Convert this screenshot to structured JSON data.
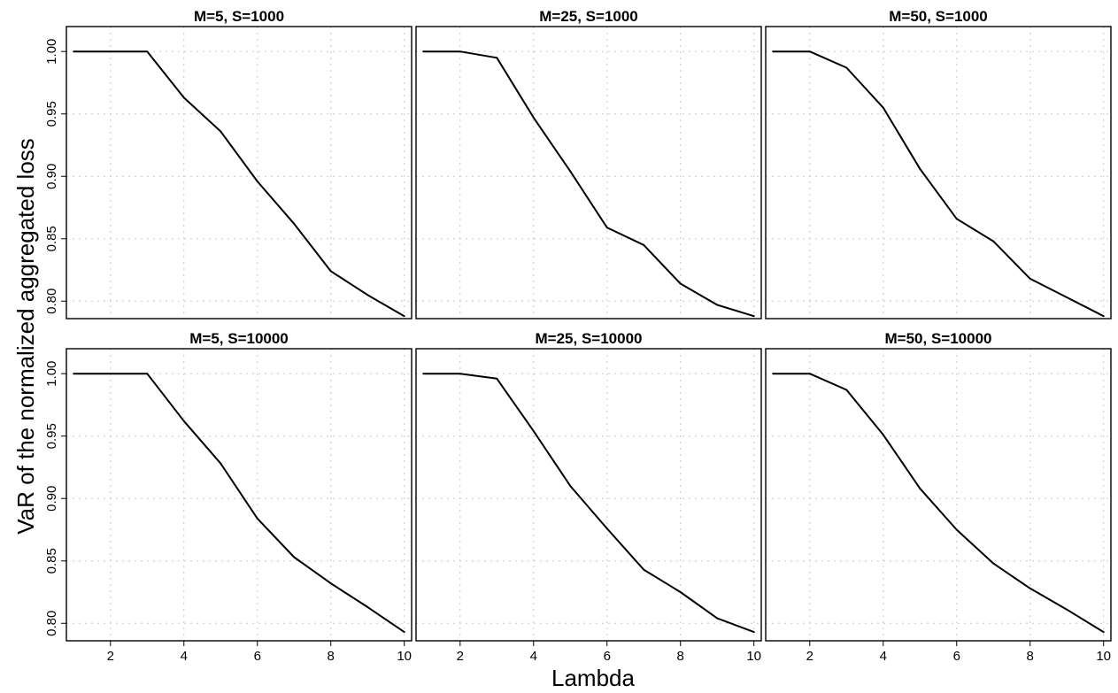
{
  "figure": {
    "xlabel": "Lambda",
    "ylabel": "VaR of the normalized aggregated loss"
  },
  "chart_data": [
    {
      "type": "line",
      "title": "M=5, S=1000",
      "xlim": [
        0.8,
        10.2
      ],
      "ylim": [
        0.786,
        1.02
      ],
      "xticks": [
        2,
        4,
        6,
        8,
        10
      ],
      "yticks": [
        0.8,
        0.85,
        0.9,
        0.95,
        1.0
      ],
      "grid": true,
      "x": [
        1,
        2,
        3,
        4,
        5,
        6,
        7,
        8,
        9,
        10
      ],
      "series": [
        {
          "values": [
            1.0,
            1.0,
            1.0,
            0.963,
            0.936,
            0.896,
            0.862,
            0.824,
            0.805,
            0.788
          ]
        }
      ]
    },
    {
      "type": "line",
      "title": "M=25, S=1000",
      "xlim": [
        0.8,
        10.2
      ],
      "ylim": [
        0.786,
        1.02
      ],
      "xticks": [
        2,
        4,
        6,
        8,
        10
      ],
      "yticks": [
        0.8,
        0.85,
        0.9,
        0.95,
        1.0
      ],
      "grid": true,
      "x": [
        1,
        2,
        3,
        4,
        5,
        6,
        7,
        8,
        9,
        10
      ],
      "series": [
        {
          "values": [
            1.0,
            1.0,
            0.995,
            0.947,
            0.904,
            0.859,
            0.845,
            0.814,
            0.797,
            0.788
          ]
        }
      ]
    },
    {
      "type": "line",
      "title": "M=50, S=1000",
      "xlim": [
        0.8,
        10.2
      ],
      "ylim": [
        0.786,
        1.02
      ],
      "xticks": [
        2,
        4,
        6,
        8,
        10
      ],
      "yticks": [
        0.8,
        0.85,
        0.9,
        0.95,
        1.0
      ],
      "grid": true,
      "x": [
        1,
        2,
        3,
        4,
        5,
        6,
        7,
        8,
        9,
        10
      ],
      "series": [
        {
          "values": [
            1.0,
            1.0,
            0.987,
            0.955,
            0.906,
            0.866,
            0.848,
            0.818,
            0.803,
            0.788
          ]
        }
      ]
    },
    {
      "type": "line",
      "title": "M=5, S=10000",
      "xlim": [
        0.8,
        10.2
      ],
      "ylim": [
        0.786,
        1.02
      ],
      "xticks": [
        2,
        4,
        6,
        8,
        10
      ],
      "yticks": [
        0.8,
        0.85,
        0.9,
        0.95,
        1.0
      ],
      "grid": true,
      "x": [
        1,
        2,
        3,
        4,
        5,
        6,
        7,
        8,
        9,
        10
      ],
      "series": [
        {
          "values": [
            1.0,
            1.0,
            1.0,
            0.962,
            0.928,
            0.884,
            0.853,
            0.832,
            0.813,
            0.793
          ]
        }
      ]
    },
    {
      "type": "line",
      "title": "M=25, S=10000",
      "xlim": [
        0.8,
        10.2
      ],
      "ylim": [
        0.786,
        1.02
      ],
      "xticks": [
        2,
        4,
        6,
        8,
        10
      ],
      "yticks": [
        0.8,
        0.85,
        0.9,
        0.95,
        1.0
      ],
      "grid": true,
      "x": [
        1,
        2,
        3,
        4,
        5,
        6,
        7,
        8,
        9,
        10
      ],
      "series": [
        {
          "values": [
            1.0,
            1.0,
            0.996,
            0.954,
            0.91,
            0.876,
            0.843,
            0.825,
            0.804,
            0.793
          ]
        }
      ]
    },
    {
      "type": "line",
      "title": "M=50, S=10000",
      "xlim": [
        0.8,
        10.2
      ],
      "ylim": [
        0.786,
        1.02
      ],
      "xticks": [
        2,
        4,
        6,
        8,
        10
      ],
      "yticks": [
        0.8,
        0.85,
        0.9,
        0.95,
        1.0
      ],
      "grid": true,
      "x": [
        1,
        2,
        3,
        4,
        5,
        6,
        7,
        8,
        9,
        10
      ],
      "series": [
        {
          "values": [
            1.0,
            1.0,
            0.987,
            0.951,
            0.908,
            0.875,
            0.848,
            0.828,
            0.811,
            0.793
          ]
        }
      ]
    }
  ]
}
